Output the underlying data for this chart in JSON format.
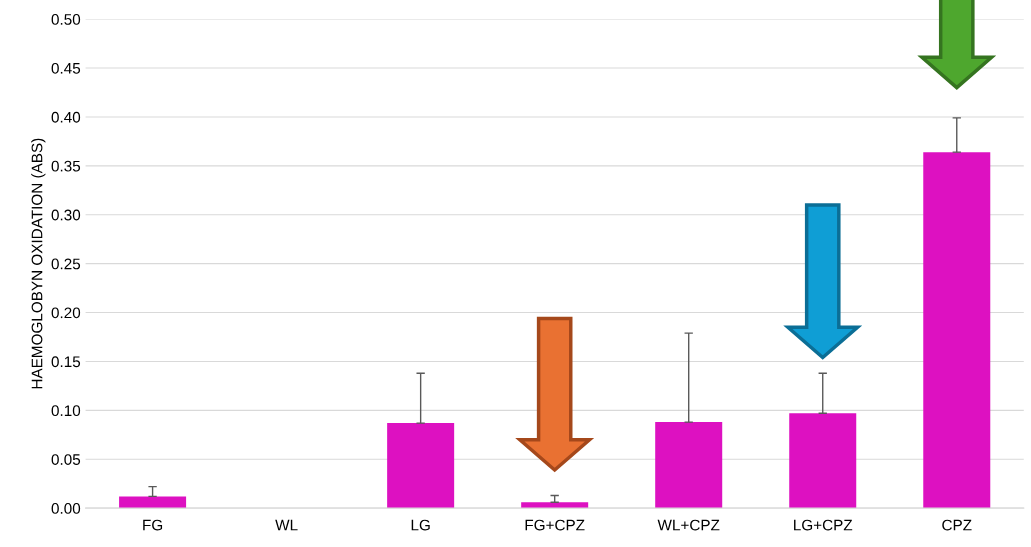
{
  "chart_data": {
    "type": "bar",
    "ylabel": "HAEMOGLOBYN OXIDATION (ABS)",
    "categories": [
      "FG",
      "WL",
      "LG",
      "FG+CPZ",
      "WL+CPZ",
      "LG+CPZ",
      "CPZ"
    ],
    "values": [
      0.012,
      0,
      0.087,
      0.006,
      0.088,
      0.097,
      0.364
    ],
    "errors": [
      [
        0.012,
        0.022
      ],
      null,
      [
        0.087,
        0.138
      ],
      [
        0.006,
        0.013
      ],
      [
        0.088,
        0.179
      ],
      [
        0.097,
        0.138
      ],
      [
        0.364,
        0.399
      ]
    ],
    "color": "#dd11c1",
    "ylim": [
      0,
      0.5
    ],
    "yticks": [
      {
        "value": 0,
        "label": "0.00"
      },
      {
        "value": 0.05,
        "label": "0.05"
      },
      {
        "value": 0.1,
        "label": "0.10"
      },
      {
        "value": 0.15,
        "label": "0.15"
      },
      {
        "value": 0.2,
        "label": "0.20"
      },
      {
        "value": 0.25,
        "label": "0.25"
      },
      {
        "value": 0.3,
        "label": "0.30"
      },
      {
        "value": 0.35,
        "label": "0.35"
      },
      {
        "value": 0.4,
        "label": "0.40"
      },
      {
        "value": 0.45,
        "label": "0.45"
      },
      {
        "value": 0.5,
        "label": "0.50"
      }
    ],
    "grid": "y"
  }
}
